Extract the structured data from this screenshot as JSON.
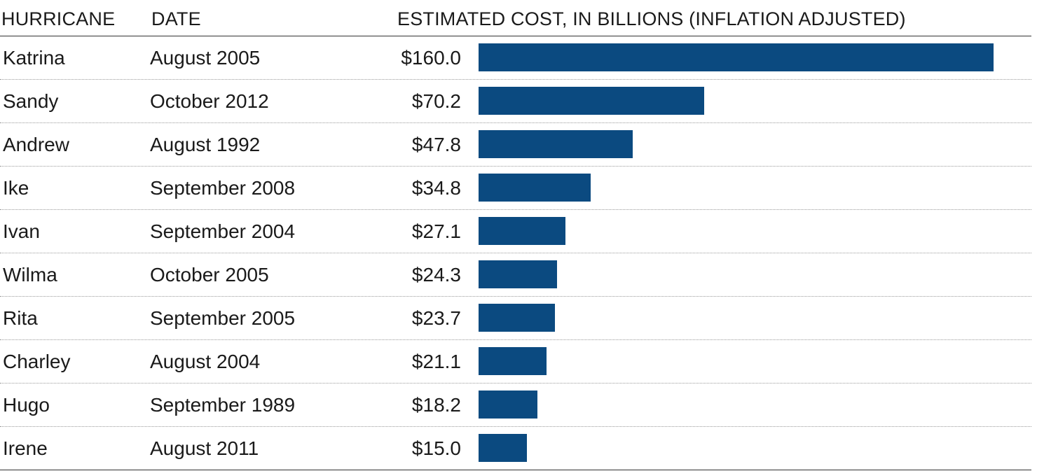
{
  "header": {
    "name_label": "HURRICANE",
    "date_label": "DATE",
    "cost_label": "ESTIMATED COST, IN BILLIONS (INFLATION ADJUSTED)"
  },
  "colors": {
    "bar": "#0b4a80"
  },
  "chart_data": {
    "type": "bar",
    "orientation": "horizontal",
    "categories": [
      "Katrina",
      "Sandy",
      "Andrew",
      "Ike",
      "Ivan",
      "Wilma",
      "Rita",
      "Charley",
      "Hugo",
      "Irene"
    ],
    "dates": [
      "August 2005",
      "October 2012",
      "August 1992",
      "September 2008",
      "September 2004",
      "October 2005",
      "September 2005",
      "August 2004",
      "September 1989",
      "August 2011"
    ],
    "values": [
      160.0,
      70.2,
      47.8,
      34.8,
      27.1,
      24.3,
      23.7,
      21.1,
      18.2,
      15.0
    ],
    "value_labels": [
      "$160.0",
      "$70.2",
      "$47.8",
      "$34.8",
      "$27.1",
      "$24.3",
      "$23.7",
      "$21.1",
      "$18.2",
      "$15.0"
    ],
    "xlim": [
      0,
      160
    ]
  }
}
